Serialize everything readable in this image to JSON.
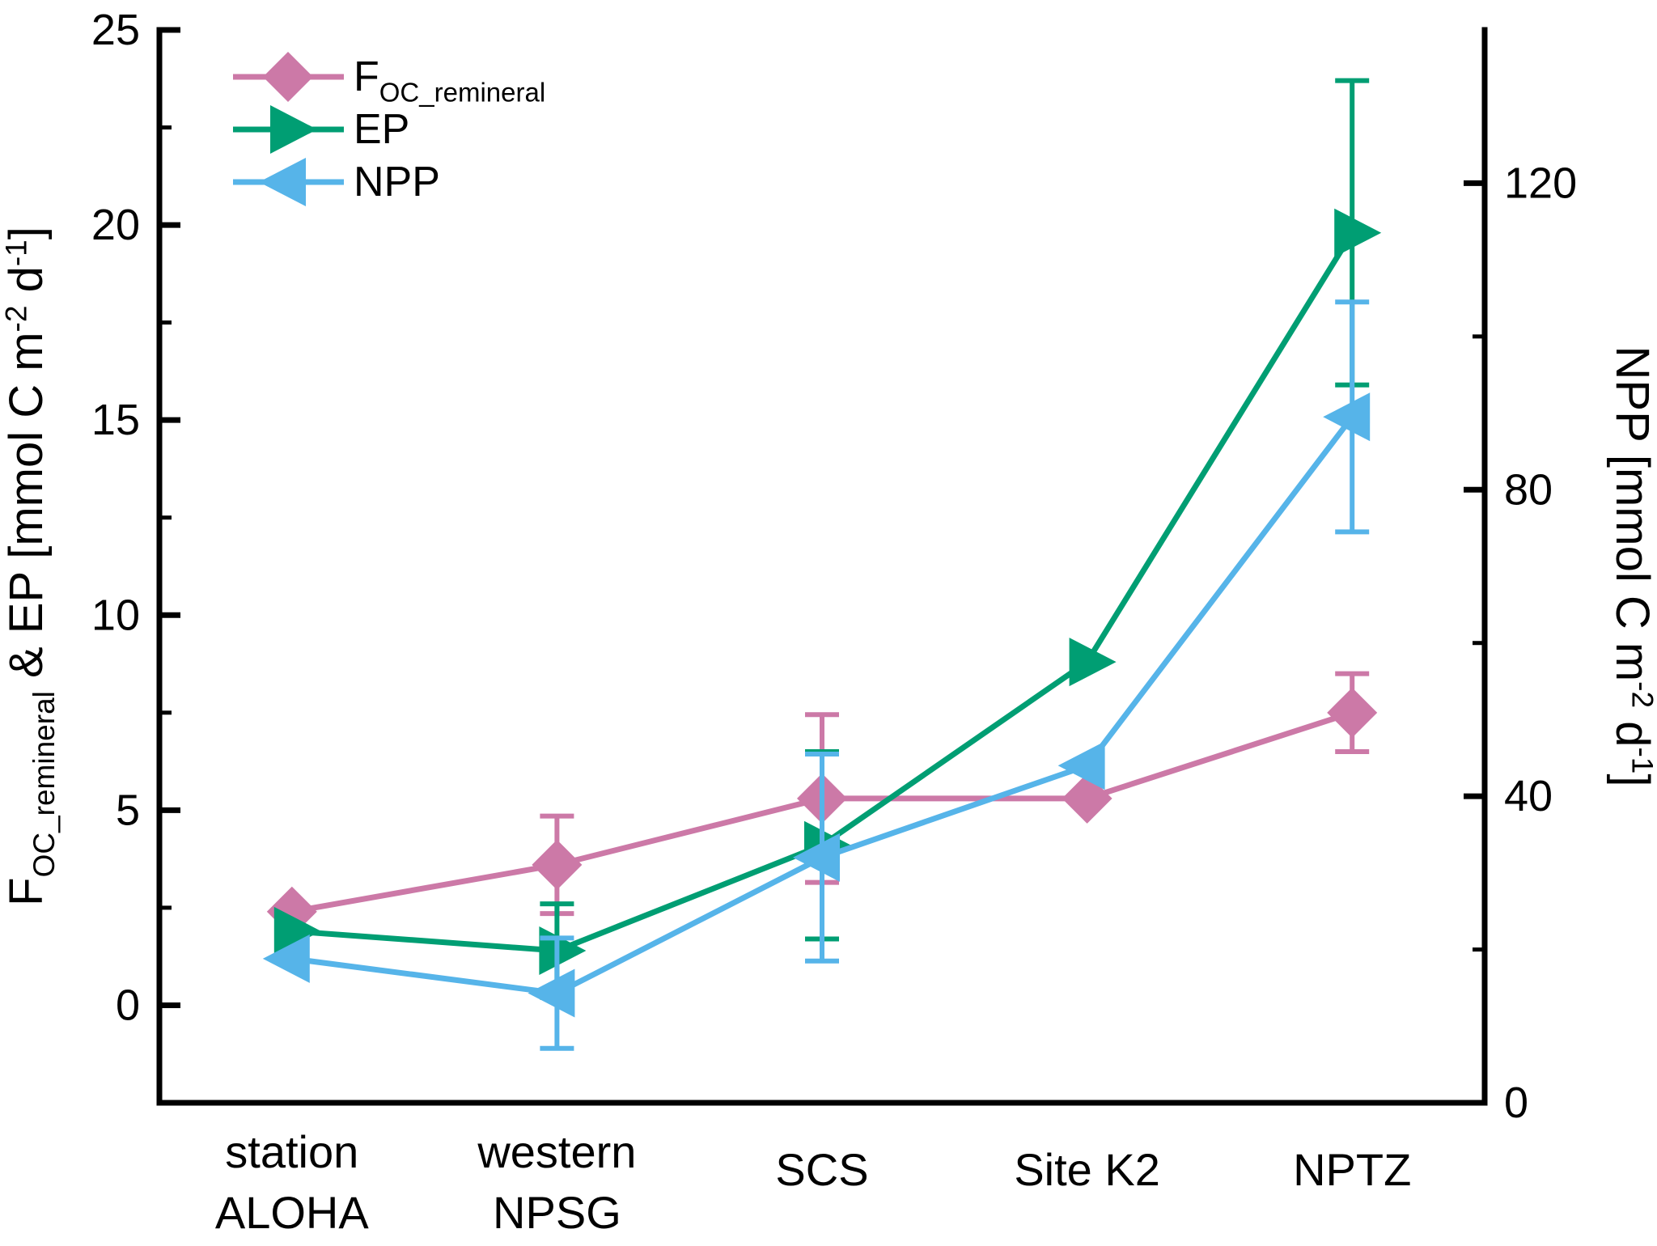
{
  "chart_data": {
    "type": "line",
    "title": "",
    "grid": false,
    "frame_color": "#000000",
    "background": "#ffffff",
    "legend_position": "top-left",
    "categories": [
      {
        "id": "station-aloha",
        "lines": [
          "station",
          "ALOHA"
        ]
      },
      {
        "id": "western-npsg",
        "lines": [
          "western",
          "NPSG"
        ]
      },
      {
        "id": "scs",
        "lines": [
          "SCS"
        ]
      },
      {
        "id": "site-k2",
        "lines": [
          "Site K2"
        ]
      },
      {
        "id": "nptz",
        "lines": [
          "NPTZ"
        ]
      }
    ],
    "left_axis": {
      "label_parts": [
        {
          "t": "F"
        },
        {
          "t": "OC_remineral",
          "style": "sub"
        },
        {
          "t": " & EP [mmol C m"
        },
        {
          "t": "-2",
          "style": "sup"
        },
        {
          "t": " d"
        },
        {
          "t": "-1",
          "style": "sup"
        },
        {
          "t": "]"
        }
      ],
      "range": [
        -2.5,
        25
      ],
      "major_ticks": [
        0,
        5,
        10,
        15,
        20,
        25
      ],
      "minor_ticks": [
        2.5,
        7.5,
        12.5,
        17.5,
        22.5
      ]
    },
    "right_axis": {
      "label_parts": [
        {
          "t": "NPP [mmol C m"
        },
        {
          "t": "-2",
          "style": "sup"
        },
        {
          "t": " d"
        },
        {
          "t": "-1",
          "style": "sup"
        },
        {
          "t": "]"
        }
      ],
      "range": [
        0,
        140
      ],
      "major_ticks": [
        0,
        40,
        80,
        120
      ],
      "minor_ticks": [
        20,
        60,
        100
      ]
    },
    "series": [
      {
        "id": "foc-remineral",
        "name_parts": [
          {
            "t": "F"
          },
          {
            "t": "OC_remineral",
            "style": "sub"
          }
        ],
        "axis": "left",
        "color": "#CC79A7",
        "marker": "diamond",
        "values": [
          2.4,
          3.6,
          5.3,
          5.3,
          7.5
        ],
        "errors": [
          0,
          1.25,
          2.15,
          0,
          1.0
        ]
      },
      {
        "id": "ep",
        "name_parts": [
          {
            "t": "EP"
          }
        ],
        "axis": "left",
        "color": "#009E73",
        "marker": "triangle-right",
        "values": [
          1.9,
          1.4,
          4.1,
          8.8,
          19.8
        ],
        "errors": [
          0,
          1.2,
          2.4,
          0,
          3.9
        ]
      },
      {
        "id": "npp",
        "name_parts": [
          {
            "t": "NPP"
          }
        ],
        "axis": "right",
        "color": "#56B4E9",
        "marker": "triangle-left",
        "values": [
          18.8,
          14.3,
          32,
          44,
          89.5
        ],
        "errors": [
          0,
          7.2,
          13.5,
          0,
          15
        ]
      }
    ]
  }
}
